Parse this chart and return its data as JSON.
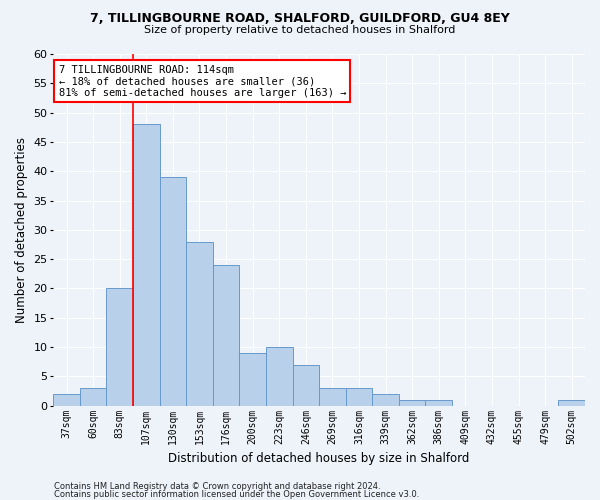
{
  "title1": "7, TILLINGBOURNE ROAD, SHALFORD, GUILDFORD, GU4 8EY",
  "title2": "Size of property relative to detached houses in Shalford",
  "xlabel": "Distribution of detached houses by size in Shalford",
  "ylabel": "Number of detached properties",
  "bar_color": "#b8d0ea",
  "bar_edge_color": "#6699cc",
  "categories": [
    "37sqm",
    "60sqm",
    "83sqm",
    "107sqm",
    "130sqm",
    "153sqm",
    "176sqm",
    "200sqm",
    "223sqm",
    "246sqm",
    "269sqm",
    "316sqm",
    "339sqm",
    "362sqm",
    "386sqm",
    "409sqm",
    "432sqm",
    "455sqm",
    "479sqm",
    "502sqm"
  ],
  "values": [
    2,
    3,
    20,
    48,
    39,
    28,
    24,
    9,
    10,
    7,
    3,
    3,
    2,
    1,
    1,
    0,
    0,
    0,
    0,
    1
  ],
  "ylim": [
    0,
    60
  ],
  "yticks": [
    0,
    5,
    10,
    15,
    20,
    25,
    30,
    35,
    40,
    45,
    50,
    55,
    60
  ],
  "property_line_index": 3,
  "annotation_text": "7 TILLINGBOURNE ROAD: 114sqm\n← 18% of detached houses are smaller (36)\n81% of semi-detached houses are larger (163) →",
  "annotation_box_color": "white",
  "annotation_box_edge": "red",
  "footer1": "Contains HM Land Registry data © Crown copyright and database right 2024.",
  "footer2": "Contains public sector information licensed under the Open Government Licence v3.0.",
  "bg_color": "#eef2f9",
  "grid_color": "white"
}
